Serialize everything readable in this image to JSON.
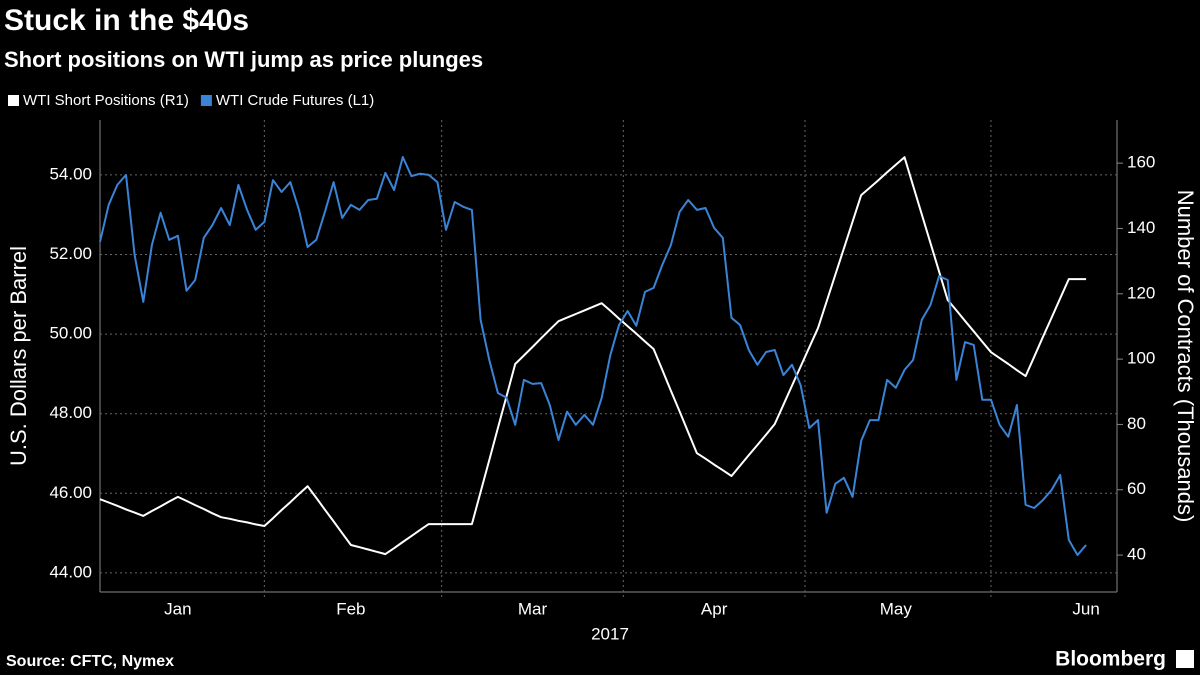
{
  "chart_data": {
    "type": "line",
    "title": "Stuck in the $40s",
    "subtitle": "Short positions on WTI jump as price plunges",
    "ylabel": "U.S. Dollars per Barrel",
    "y2label": "Number of Contracts (Thousands)",
    "xlabel": "2017",
    "source": "Source: CFTC, Nymex",
    "brand": "Bloomberg",
    "categories": [
      null,
      null,
      null,
      null,
      null,
      null,
      null,
      null,
      null,
      "Jan",
      null,
      null,
      null,
      null,
      null,
      null,
      null,
      null,
      null,
      null,
      null,
      null,
      null,
      null,
      null,
      null,
      null,
      null,
      null,
      "Feb",
      null,
      null,
      null,
      null,
      null,
      null,
      null,
      null,
      null,
      null,
      null,
      null,
      null,
      null,
      null,
      null,
      null,
      null,
      null,
      null,
      "Mar",
      null,
      null,
      null,
      null,
      null,
      null,
      null,
      null,
      null,
      null,
      null,
      null,
      null,
      null,
      null,
      null,
      null,
      null,
      null,
      null,
      "Apr",
      null,
      null,
      null,
      null,
      null,
      null,
      null,
      null,
      null,
      null,
      null,
      null,
      null,
      null,
      null,
      null,
      null,
      null,
      null,
      null,
      "May",
      null,
      null,
      null,
      null,
      null,
      null,
      null,
      null,
      null,
      null,
      null,
      null,
      null,
      null,
      null,
      null,
      null,
      null,
      null,
      null,
      null,
      "Jun"
    ],
    "series": [
      {
        "name": "WTI Short Positions (R1)",
        "color": "#ffffff",
        "axis": "y2",
        "values": [
          57.1,
          56.1,
          55.1,
          54.0,
          53.0,
          52.0,
          53.5,
          54.9,
          56.4,
          57.8,
          56.6,
          55.3,
          54.1,
          52.8,
          51.6,
          51.1,
          50.5,
          50.0,
          49.4,
          48.9,
          51.3,
          53.8,
          56.2,
          58.7,
          61.1,
          57.5,
          53.9,
          50.3,
          46.7,
          43.1,
          42.4,
          41.7,
          41.0,
          40.3,
          42.1,
          44.0,
          45.8,
          47.7,
          49.5,
          49.5,
          49.5,
          49.5,
          49.5,
          49.5,
          59.3,
          69.1,
          78.9,
          88.7,
          98.5,
          101.1,
          103.7,
          106.4,
          109.0,
          111.6,
          112.7,
          113.8,
          114.9,
          116.0,
          117.1,
          114.8,
          112.4,
          110.1,
          107.8,
          105.4,
          103.1,
          96.7,
          90.3,
          84.0,
          77.6,
          71.2,
          69.5,
          67.7,
          66.0,
          64.2,
          67.4,
          70.6,
          73.7,
          76.9,
          80.1,
          86.0,
          91.9,
          97.7,
          103.6,
          109.5,
          117.6,
          125.8,
          133.9,
          142.1,
          150.2,
          152.5,
          154.8,
          157.2,
          159.5,
          161.8,
          153.1,
          144.3,
          135.6,
          126.8,
          118.1,
          114.9,
          111.7,
          108.5,
          105.3,
          102.1,
          100.3,
          98.5,
          96.6,
          94.8,
          100.7,
          106.7,
          112.6,
          118.6,
          124.5,
          124.5,
          124.5
        ]
      },
      {
        "name": "WTI Crude Futures (L1)",
        "color": "#3a84d8",
        "values": [
          52.32,
          53.25,
          53.75,
          54.0,
          51.99,
          50.81,
          52.24,
          53.05,
          52.37,
          52.47,
          51.09,
          51.36,
          52.42,
          52.74,
          53.17,
          52.74,
          53.75,
          53.12,
          52.62,
          52.82,
          53.87,
          53.57,
          53.82,
          53.12,
          52.19,
          52.37,
          53.07,
          53.82,
          52.92,
          53.25,
          53.12,
          53.37,
          53.4,
          54.05,
          53.62,
          54.45,
          53.97,
          54.03,
          54.0,
          53.82,
          52.62,
          53.32,
          53.2,
          53.12,
          50.36,
          49.35,
          48.52,
          48.4,
          47.72,
          48.85,
          48.75,
          48.77,
          48.22,
          47.34,
          48.05,
          47.72,
          47.97,
          47.72,
          48.4,
          49.48,
          50.23,
          50.58,
          50.21,
          51.06,
          51.16,
          51.74,
          52.24,
          53.07,
          53.37,
          53.12,
          53.17,
          52.67,
          52.42,
          50.41,
          50.23,
          49.6,
          49.23,
          49.55,
          49.6,
          48.97,
          49.23,
          48.72,
          47.64,
          47.84,
          45.51,
          46.24,
          46.39,
          45.91,
          47.32,
          47.84,
          47.84,
          48.85,
          48.65,
          49.1,
          49.35,
          50.36,
          50.73,
          51.46,
          51.36,
          48.85,
          49.8,
          49.73,
          48.35,
          48.35,
          47.72,
          47.42,
          48.22,
          45.71,
          45.63,
          45.83,
          46.08,
          46.46,
          44.83,
          44.45,
          44.7
        ]
      }
    ],
    "ylim": [
      43.52,
      55.38
    ],
    "yticks": [
      {
        "value": 44,
        "label": "44.00"
      },
      {
        "value": 46,
        "label": "46.00"
      },
      {
        "value": 48,
        "label": "48.00"
      },
      {
        "value": 50,
        "label": "50.00"
      },
      {
        "value": 52,
        "label": "52.00"
      },
      {
        "value": 54,
        "label": "54.00"
      }
    ],
    "y2lim": [
      28.7,
      173.2
    ],
    "y2ticks": [
      40,
      60,
      80,
      100,
      120,
      140,
      160
    ],
    "grid": true,
    "legend": "top-left"
  }
}
